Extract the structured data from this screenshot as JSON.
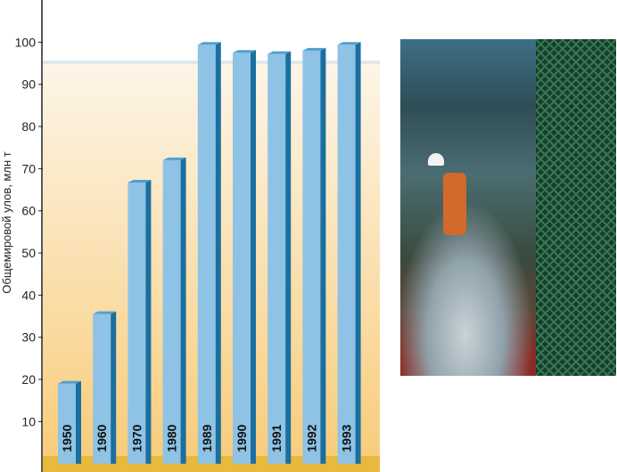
{
  "chart_data": {
    "type": "bar",
    "categories": [
      "1950",
      "1960",
      "1970",
      "1980",
      "1989",
      "1990",
      "1991",
      "1992",
      "1993"
    ],
    "values": [
      19,
      35.5,
      66.7,
      72,
      99.4,
      97.5,
      97.2,
      98,
      99.4
    ],
    "ylabel": "Общемировой улов, млн т",
    "xlabel": "",
    "ylim": [
      0,
      110
    ],
    "yticks": [
      10,
      20,
      30,
      40,
      50,
      60,
      70,
      80,
      90,
      100
    ],
    "grid": false,
    "colors": {
      "bar_front": "#8ec3e6",
      "bar_side": "#1a6fa0",
      "bar_top": "#4f9fd1",
      "bg_top": "#fdf3e2",
      "bg_bottom": "#f8cf82",
      "base_band": "#e7b93c"
    }
  },
  "photo": {
    "subject": "fishing-vessel-deck-photo"
  }
}
